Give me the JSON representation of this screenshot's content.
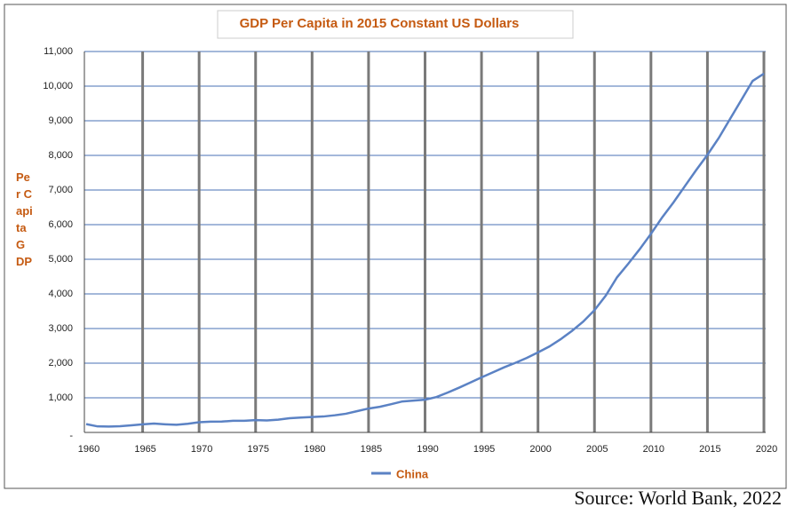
{
  "chart_data": {
    "type": "line",
    "title": "GDP Per Capita in 2015 Constant US Dollars",
    "y_label": "Per Capita GDP",
    "source": "Source: World Bank, 2022",
    "x": [
      1960,
      1961,
      1962,
      1963,
      1964,
      1965,
      1966,
      1967,
      1968,
      1969,
      1970,
      1971,
      1972,
      1973,
      1974,
      1975,
      1976,
      1977,
      1978,
      1979,
      1980,
      1981,
      1982,
      1983,
      1984,
      1985,
      1986,
      1987,
      1988,
      1989,
      1990,
      1991,
      1992,
      1993,
      1994,
      1995,
      1996,
      1997,
      1998,
      1999,
      2000,
      2001,
      2002,
      2003,
      2004,
      2005,
      2006,
      2007,
      2008,
      2009,
      2010,
      2011,
      2012,
      2013,
      2014,
      2015,
      2016,
      2017,
      2018,
      2019,
      2020
    ],
    "series": [
      {
        "name": "China",
        "color": "#5b82c4",
        "values": [
          240,
          175,
          170,
          180,
          205,
          235,
          255,
          235,
          220,
          250,
          295,
          310,
          315,
          335,
          335,
          355,
          345,
          370,
          410,
          430,
          445,
          460,
          495,
          540,
          615,
          690,
          740,
          815,
          895,
          920,
          945,
          1020,
          1150,
          1290,
          1440,
          1590,
          1735,
          1880,
          2010,
          2150,
          2310,
          2480,
          2690,
          2930,
          3200,
          3530,
          3950,
          4480,
          4875,
          5290,
          5735,
          6213,
          6645,
          7110,
          7573,
          8016,
          8500,
          9050,
          9600,
          10150,
          10360
        ]
      }
    ],
    "xlim": [
      1960,
      2020
    ],
    "xticks": [
      1960,
      1965,
      1970,
      1975,
      1980,
      1985,
      1990,
      1995,
      2000,
      2005,
      2010,
      2015,
      2020
    ],
    "ylim": [
      0,
      11000
    ],
    "yticks": [
      {
        "value": 0,
        "label": "-"
      },
      {
        "value": 1000,
        "label": "1,000"
      },
      {
        "value": 2000,
        "label": "2,000"
      },
      {
        "value": 3000,
        "label": "3,000"
      },
      {
        "value": 4000,
        "label": "4,000"
      },
      {
        "value": 5000,
        "label": "5,000"
      },
      {
        "value": 6000,
        "label": "6,000"
      },
      {
        "value": 7000,
        "label": "7,000"
      },
      {
        "value": 8000,
        "label": "8,000"
      },
      {
        "value": 9000,
        "label": "9,000"
      },
      {
        "value": 10000,
        "label": "10,000"
      },
      {
        "value": 11000,
        "label": "11,000"
      }
    ],
    "grid": true,
    "legend": "bottom"
  }
}
